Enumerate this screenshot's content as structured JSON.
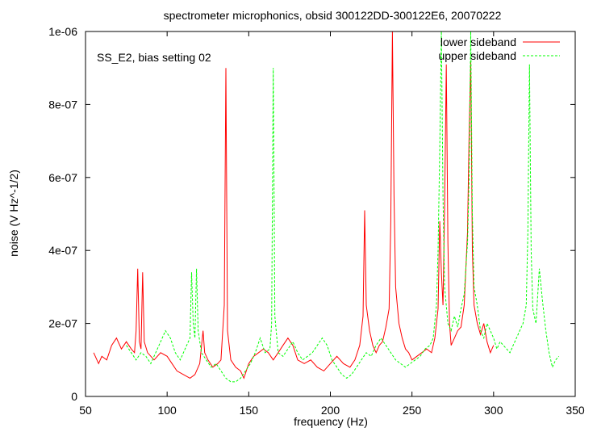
{
  "chart_data": {
    "type": "line",
    "title": "spectrometer microphonics, obsid 300122DD-300122E6, 20070222",
    "xlabel": "frequency (Hz)",
    "ylabel": "noise (V Hz^-1/2)",
    "annotation": "SS_E2, bias setting 02",
    "xlim": [
      50,
      350
    ],
    "ylim": [
      0,
      1e-06
    ],
    "x_ticks": [
      50,
      100,
      150,
      200,
      250,
      300,
      350
    ],
    "x_tick_labels": [
      "50",
      "100",
      "150",
      "200",
      "250",
      "300",
      "350"
    ],
    "y_ticks": [
      0,
      2e-07,
      4e-07,
      6e-07,
      8e-07,
      1e-06
    ],
    "y_tick_labels": [
      "0",
      "2e-07",
      "4e-07",
      "6e-07",
      "8e-07",
      "1e-06"
    ],
    "grid": false,
    "legend_position": "top-right",
    "series": [
      {
        "name": "lower sideband",
        "color": "#ff0000",
        "dash": "solid",
        "points": [
          [
            55,
            1.2e-07
          ],
          [
            58,
            9e-08
          ],
          [
            60,
            1.1e-07
          ],
          [
            63,
            1e-07
          ],
          [
            66,
            1.4e-07
          ],
          [
            69,
            1.6e-07
          ],
          [
            72,
            1.3e-07
          ],
          [
            75,
            1.5e-07
          ],
          [
            78,
            1.3e-07
          ],
          [
            80,
            1.2e-07
          ],
          [
            81,
            1.8e-07
          ],
          [
            82,
            3.5e-07
          ],
          [
            83,
            1.5e-07
          ],
          [
            84,
            1.3e-07
          ],
          [
            85,
            3.4e-07
          ],
          [
            86,
            1.5e-07
          ],
          [
            88,
            1.2e-07
          ],
          [
            92,
            1e-07
          ],
          [
            96,
            1.2e-07
          ],
          [
            100,
            1.1e-07
          ],
          [
            103,
            9e-08
          ],
          [
            106,
            7e-08
          ],
          [
            110,
            6e-08
          ],
          [
            114,
            5e-08
          ],
          [
            117,
            6e-08
          ],
          [
            120,
            9e-08
          ],
          [
            122,
            1.8e-07
          ],
          [
            123,
            1.2e-07
          ],
          [
            125,
            1e-07
          ],
          [
            128,
            8e-08
          ],
          [
            131,
            9e-08
          ],
          [
            133,
            1e-07
          ],
          [
            135,
            2.5e-07
          ],
          [
            136,
            9e-07
          ],
          [
            137,
            1.8e-07
          ],
          [
            139,
            1e-07
          ],
          [
            142,
            8e-08
          ],
          [
            145,
            7e-08
          ],
          [
            147,
            5e-08
          ],
          [
            150,
            9e-08
          ],
          [
            153,
            1.1e-07
          ],
          [
            156,
            1.2e-07
          ],
          [
            159,
            1.3e-07
          ],
          [
            162,
            1.2e-07
          ],
          [
            165,
            1e-07
          ],
          [
            168,
            1.2e-07
          ],
          [
            171,
            1.4e-07
          ],
          [
            174,
            1.6e-07
          ],
          [
            177,
            1.4e-07
          ],
          [
            180,
            1e-07
          ],
          [
            184,
            9e-08
          ],
          [
            188,
            1e-07
          ],
          [
            192,
            8e-08
          ],
          [
            196,
            7e-08
          ],
          [
            200,
            9e-08
          ],
          [
            204,
            1.1e-07
          ],
          [
            208,
            9e-08
          ],
          [
            212,
            8e-08
          ],
          [
            215,
            1e-07
          ],
          [
            218,
            1.4e-07
          ],
          [
            220,
            2.2e-07
          ],
          [
            221,
            5.1e-07
          ],
          [
            222,
            2.5e-07
          ],
          [
            224,
            1.8e-07
          ],
          [
            226,
            1.4e-07
          ],
          [
            228,
            1.2e-07
          ],
          [
            230,
            1.4e-07
          ],
          [
            232,
            1.5e-07
          ],
          [
            234,
            1.9e-07
          ],
          [
            236,
            2.4e-07
          ],
          [
            237,
            4.8e-07
          ],
          [
            238,
            1e-06
          ],
          [
            239,
            5.5e-07
          ],
          [
            240,
            3e-07
          ],
          [
            242,
            2e-07
          ],
          [
            244,
            1.6e-07
          ],
          [
            246,
            1.3e-07
          ],
          [
            248,
            1.2e-07
          ],
          [
            250,
            1e-07
          ],
          [
            253,
            1.1e-07
          ],
          [
            256,
            1.2e-07
          ],
          [
            259,
            1.3e-07
          ],
          [
            262,
            1.2e-07
          ],
          [
            264,
            1.6e-07
          ],
          [
            266,
            2.4e-07
          ],
          [
            267,
            4.8e-07
          ],
          [
            268,
            3.4e-07
          ],
          [
            269,
            2.5e-07
          ],
          [
            270,
            5.2e-07
          ],
          [
            271,
            9.1e-07
          ],
          [
            272,
            4.2e-07
          ],
          [
            273,
            2e-07
          ],
          [
            274,
            1.4e-07
          ],
          [
            276,
            1.6e-07
          ],
          [
            278,
            1.8e-07
          ],
          [
            280,
            1.9e-07
          ],
          [
            282,
            2.5e-07
          ],
          [
            284,
            4.5e-07
          ],
          [
            285,
            7.2e-07
          ],
          [
            286,
            9.2e-07
          ],
          [
            287,
            4e-07
          ],
          [
            288,
            2.5e-07
          ],
          [
            290,
            2e-07
          ],
          [
            292,
            1.7e-07
          ],
          [
            294,
            2e-07
          ],
          [
            296,
            1.5e-07
          ],
          [
            298,
            1.2e-07
          ],
          [
            300,
            1.4e-07
          ]
        ]
      },
      {
        "name": "upper sideband",
        "color": "#00ff00",
        "dash": "dashed",
        "points": [
          [
            75,
            1.4e-07
          ],
          [
            78,
            1.2e-07
          ],
          [
            81,
            1e-07
          ],
          [
            84,
            1.2e-07
          ],
          [
            87,
            1.1e-07
          ],
          [
            90,
            9e-08
          ],
          [
            93,
            1.2e-07
          ],
          [
            96,
            1.5e-07
          ],
          [
            99,
            1.8e-07
          ],
          [
            102,
            1.6e-07
          ],
          [
            105,
            1.2e-07
          ],
          [
            108,
            1e-07
          ],
          [
            111,
            1.3e-07
          ],
          [
            114,
            1.6e-07
          ],
          [
            115,
            3.4e-07
          ],
          [
            116,
            2e-07
          ],
          [
            117,
            1.6e-07
          ],
          [
            118,
            3.5e-07
          ],
          [
            119,
            1.8e-07
          ],
          [
            121,
            1.2e-07
          ],
          [
            124,
            1e-07
          ],
          [
            127,
            8e-08
          ],
          [
            130,
            9e-08
          ],
          [
            133,
            7e-08
          ],
          [
            136,
            5e-08
          ],
          [
            139,
            4e-08
          ],
          [
            142,
            4e-08
          ],
          [
            145,
            5e-08
          ],
          [
            148,
            7e-08
          ],
          [
            151,
            9e-08
          ],
          [
            154,
            1.2e-07
          ],
          [
            157,
            1.6e-07
          ],
          [
            160,
            1.2e-07
          ],
          [
            163,
            1.3e-07
          ],
          [
            164,
            2e-07
          ],
          [
            165,
            9e-07
          ],
          [
            166,
            2.2e-07
          ],
          [
            168,
            1.2e-07
          ],
          [
            171,
            1.1e-07
          ],
          [
            174,
            1.3e-07
          ],
          [
            177,
            1.5e-07
          ],
          [
            180,
            1.2e-07
          ],
          [
            183,
            1e-07
          ],
          [
            186,
            1.1e-07
          ],
          [
            189,
            1.2e-07
          ],
          [
            192,
            1.4e-07
          ],
          [
            195,
            1.6e-07
          ],
          [
            198,
            1.4e-07
          ],
          [
            201,
            1e-07
          ],
          [
            204,
            8e-08
          ],
          [
            207,
            6e-08
          ],
          [
            210,
            5e-08
          ],
          [
            213,
            6e-08
          ],
          [
            216,
            8e-08
          ],
          [
            219,
            1e-07
          ],
          [
            222,
            1.2e-07
          ],
          [
            225,
            1.1e-07
          ],
          [
            228,
            1.4e-07
          ],
          [
            231,
            1.6e-07
          ],
          [
            234,
            1.4e-07
          ],
          [
            237,
            1.2e-07
          ],
          [
            240,
            1e-07
          ],
          [
            243,
            9e-08
          ],
          [
            246,
            8e-08
          ],
          [
            249,
            9e-08
          ],
          [
            252,
            1e-07
          ],
          [
            255,
            1.1e-07
          ],
          [
            258,
            1.3e-07
          ],
          [
            261,
            1.4e-07
          ],
          [
            263,
            1.6e-07
          ],
          [
            265,
            2.5e-07
          ],
          [
            266,
            4e-07
          ],
          [
            267,
            6.8e-07
          ],
          [
            268,
            1e-06
          ],
          [
            269,
            5.5e-07
          ],
          [
            270,
            3e-07
          ],
          [
            272,
            2e-07
          ],
          [
            274,
            1.8e-07
          ],
          [
            276,
            2.2e-07
          ],
          [
            278,
            1.9e-07
          ],
          [
            280,
            2.4e-07
          ],
          [
            282,
            2.8e-07
          ],
          [
            283,
            3.5e-07
          ],
          [
            284,
            4.2e-07
          ],
          [
            285,
            6e-07
          ],
          [
            286,
            1e-06
          ],
          [
            287,
            5e-07
          ],
          [
            288,
            3e-07
          ],
          [
            290,
            2.5e-07
          ],
          [
            292,
            1.8e-07
          ],
          [
            294,
            1.6e-07
          ],
          [
            296,
            2e-07
          ],
          [
            298,
            1.8e-07
          ],
          [
            300,
            1.6e-07
          ],
          [
            302,
            1.3e-07
          ],
          [
            304,
            1.5e-07
          ],
          [
            306,
            1.4e-07
          ],
          [
            308,
            1.3e-07
          ],
          [
            310,
            1.2e-07
          ],
          [
            312,
            1.4e-07
          ],
          [
            314,
            1.6e-07
          ],
          [
            316,
            1.8e-07
          ],
          [
            318,
            2e-07
          ],
          [
            320,
            2.5e-07
          ],
          [
            321,
            4.5e-07
          ],
          [
            322,
            9.1e-07
          ],
          [
            323,
            4e-07
          ],
          [
            324,
            2.4e-07
          ],
          [
            326,
            2e-07
          ],
          [
            328,
            3.5e-07
          ],
          [
            330,
            2.6e-07
          ],
          [
            332,
            1.8e-07
          ],
          [
            334,
            1.2e-07
          ],
          [
            336,
            8e-08
          ],
          [
            338,
            1e-07
          ],
          [
            340,
            1.1e-07
          ]
        ]
      }
    ]
  }
}
